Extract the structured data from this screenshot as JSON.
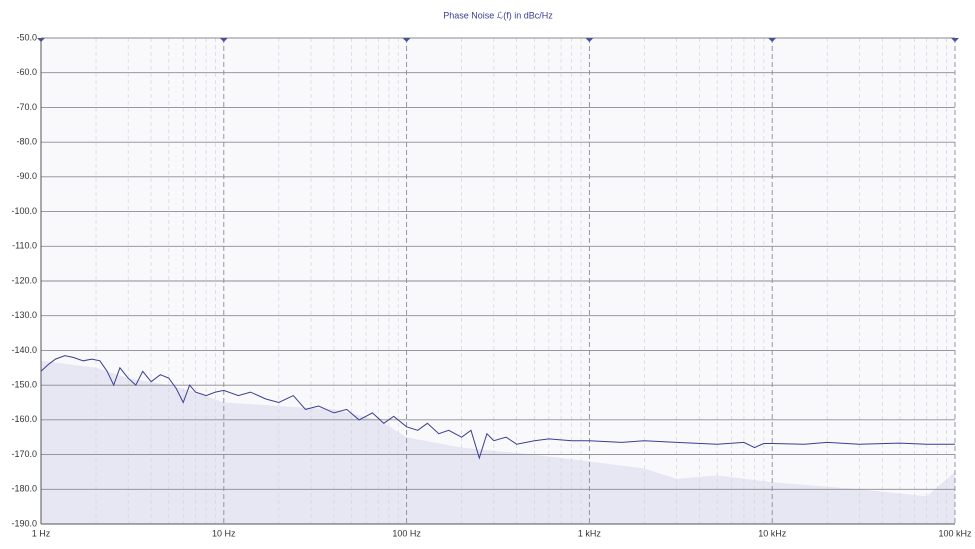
{
  "chart_data": {
    "type": "line",
    "title": "Phase Noise ℒ(f) in dBc/Hz",
    "xscale": "log",
    "grid": true,
    "xlim": [
      1,
      100000
    ],
    "xticks": [
      {
        "value": 1,
        "label": "1 Hz"
      },
      {
        "value": 10,
        "label": "10 Hz"
      },
      {
        "value": 100,
        "label": "100 Hz"
      },
      {
        "value": 1000,
        "label": "1 kHz"
      },
      {
        "value": 10000,
        "label": "10 kHz"
      },
      {
        "value": 100000,
        "label": "100 kHz"
      }
    ],
    "xminorticks": [
      2,
      3,
      4,
      5,
      6,
      7,
      8,
      9,
      20,
      30,
      40,
      50,
      60,
      70,
      80,
      90,
      200,
      300,
      400,
      500,
      600,
      700,
      800,
      900,
      2000,
      3000,
      4000,
      5000,
      6000,
      7000,
      8000,
      9000,
      20000,
      30000,
      40000,
      50000,
      60000,
      70000,
      80000,
      90000
    ],
    "ylim": [
      -190,
      -50
    ],
    "yticks": [
      {
        "value": -50,
        "label": "-50.0"
      },
      {
        "value": -60,
        "label": "-60.0"
      },
      {
        "value": -70,
        "label": "-70.0"
      },
      {
        "value": -80,
        "label": "-80.0"
      },
      {
        "value": -90,
        "label": "-90.0"
      },
      {
        "value": -100,
        "label": "-100.0"
      },
      {
        "value": -110,
        "label": "-110.0"
      },
      {
        "value": -120,
        "label": "-120.0"
      },
      {
        "value": -130,
        "label": "-130.0"
      },
      {
        "value": -140,
        "label": "-140.0"
      },
      {
        "value": -150,
        "label": "-150.0"
      },
      {
        "value": -160,
        "label": "-160.0"
      },
      {
        "value": -170,
        "label": "-170.0"
      },
      {
        "value": -180,
        "label": "-180.0"
      },
      {
        "value": -190,
        "label": "-190.0"
      }
    ],
    "series": [
      {
        "color": "#e6e7f3",
        "fill": true,
        "x": [
          1,
          2,
          3,
          5,
          7,
          10,
          20,
          40,
          70,
          100,
          200,
          500,
          1000,
          2000,
          3000,
          5000,
          10000,
          30000,
          70000,
          100000
        ],
        "values": [
          -143,
          -145,
          -148,
          -150,
          -152,
          -155,
          -156,
          -157,
          -160,
          -165,
          -168,
          -170,
          -172,
          -174,
          -177,
          -176,
          -178,
          -180,
          -182,
          -175
        ]
      },
      {
        "color": "#3a3f8f",
        "fill": false,
        "x": [
          1,
          1.1,
          1.2,
          1.35,
          1.5,
          1.7,
          1.9,
          2.1,
          2.3,
          2.5,
          2.7,
          3,
          3.3,
          3.6,
          4,
          4.5,
          5,
          5.5,
          6,
          6.5,
          7,
          8,
          9,
          10,
          12,
          14,
          17,
          20,
          24,
          28,
          33,
          40,
          47,
          55,
          65,
          75,
          85,
          100,
          115,
          130,
          150,
          170,
          200,
          225,
          250,
          275,
          300,
          350,
          400,
          500,
          600,
          800,
          1000,
          1500,
          2000,
          3000,
          5000,
          7000,
          8000,
          9000,
          10000,
          15000,
          20000,
          30000,
          50000,
          70000,
          100000
        ],
        "values": [
          -146,
          -144,
          -142.5,
          -141.5,
          -142,
          -143,
          -142.5,
          -143,
          -146,
          -150,
          -145,
          -148,
          -150,
          -146,
          -149,
          -147,
          -148,
          -151,
          -155,
          -150,
          -152,
          -153,
          -152,
          -151.5,
          -153,
          -152,
          -154,
          -155,
          -153,
          -157,
          -156,
          -158,
          -157,
          -160,
          -158,
          -161,
          -159,
          -162,
          -163,
          -161,
          -164,
          -163,
          -165,
          -163,
          -171,
          -164,
          -166,
          -165,
          -167,
          -166,
          -165.5,
          -166,
          -166,
          -166.5,
          -166,
          -166.5,
          -167,
          -166.5,
          -168,
          -166.8,
          -166.8,
          -167,
          -166.5,
          -167,
          -166.7,
          -167,
          -167
        ]
      }
    ]
  }
}
